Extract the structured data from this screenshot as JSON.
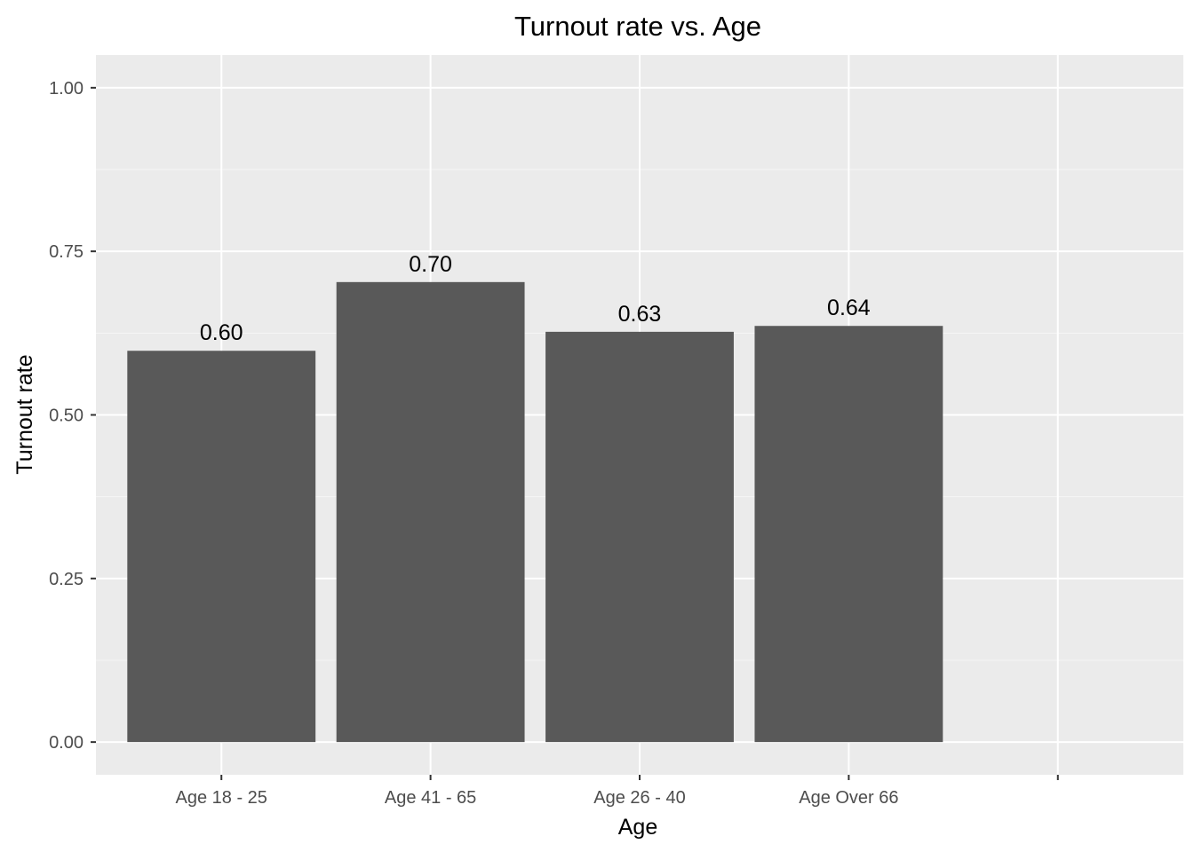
{
  "chart_data": {
    "type": "bar",
    "title": "Turnout rate vs. Age",
    "xlabel": "Age",
    "ylabel": "Turnout rate",
    "categories": [
      "Age 18 - 25",
      "Age 41 - 65",
      "Age 26 - 40",
      "Age Over 66",
      ""
    ],
    "values": [
      0.598,
      0.703,
      0.627,
      0.636,
      null
    ],
    "value_labels": [
      "0.60",
      "0.70",
      "0.63",
      "0.64",
      ""
    ],
    "ylim": [
      -0.05,
      1.05
    ],
    "yticks": [
      0.0,
      0.25,
      0.5,
      0.75,
      1.0
    ],
    "ytick_labels": [
      "0.00",
      "0.25",
      "0.50",
      "0.75",
      "1.00"
    ],
    "grid": true,
    "legend": "none",
    "colors": {
      "panel": "#ebebeb",
      "grid_major": "#ffffff",
      "grid_minor": "#f5f5f5",
      "bar": "#595959",
      "tick": "#333333",
      "tick_text": "#4d4d4d"
    }
  }
}
